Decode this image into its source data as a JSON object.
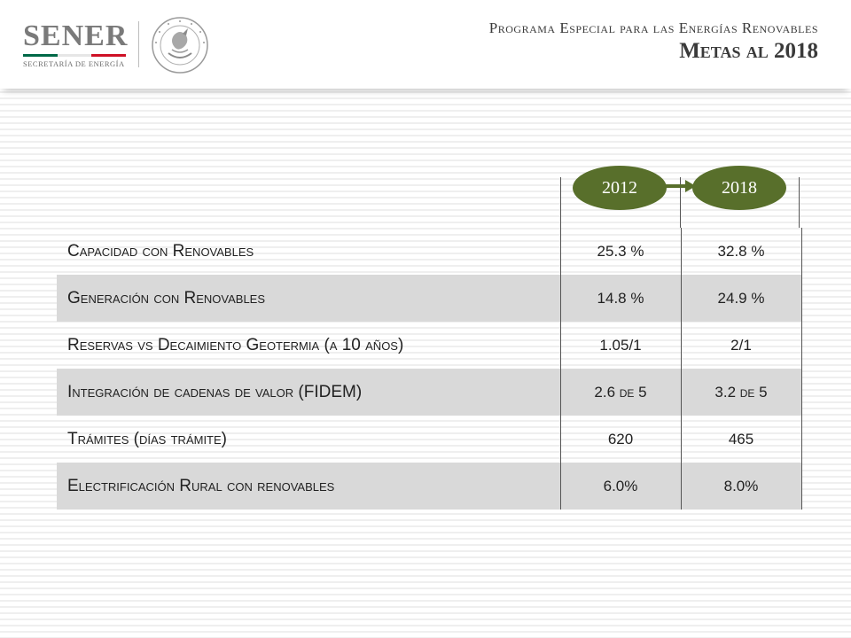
{
  "header": {
    "logo_text": "SENER",
    "logo_subtitle": "SECRETARÍA DE ENERGÍA",
    "seal_text": "ESTADOS UNIDOS MEXICANOS",
    "title_line1": "Programa Especial para las Energías Renovables",
    "title_line2": "Metas al 2018",
    "flag_colors": [
      "#006847",
      "#ffffff",
      "#ce1126"
    ]
  },
  "years": {
    "start": "2012",
    "end": "2018",
    "oval_color": "#586f2b"
  },
  "table": {
    "rows": [
      {
        "label": "Capacidad con Renovables",
        "v2012": "25.3 %",
        "v2018": "32.8 %"
      },
      {
        "label": "Generación con Renovables",
        "v2012": "14.8 %",
        "v2018": "24.9 %"
      },
      {
        "label": "Reservas vs Decaimiento Geotermia (a 10 años)",
        "v2012": "1.05/1",
        "v2018": "2/1"
      },
      {
        "label": "Integración de cadenas de valor (FIDEM)",
        "v2012": "2.6 de 5",
        "v2018": "3.2 de 5"
      },
      {
        "label": "Trámites (días trámite)",
        "v2012": "620",
        "v2018": "465"
      },
      {
        "label": "Electrificación Rural con renovables",
        "v2012": "6.0%",
        "v2018": "8.0%"
      }
    ]
  }
}
